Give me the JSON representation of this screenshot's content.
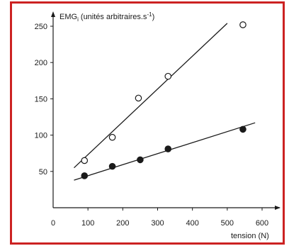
{
  "chart_data": {
    "type": "scatter",
    "title": "",
    "ylabel": "EMG",
    "ylabel_sub": "i",
    "ylabel_rest": " (unités arbitraires.s",
    "ylabel_sup": "-1",
    "ylabel_end": ")",
    "xlabel": "tension (N)",
    "xlim": [
      0,
      650
    ],
    "ylim": [
      0,
      265
    ],
    "x_ticks": [
      0,
      100,
      200,
      300,
      400,
      500,
      600
    ],
    "y_ticks": [
      50,
      100,
      150,
      200,
      250
    ],
    "grid": false,
    "series": [
      {
        "marker": "open-circle",
        "x": [
          90,
          170,
          245,
          330,
          545
        ],
        "y": [
          65,
          97,
          151,
          181,
          252
        ],
        "fit_line": {
          "x": [
            60,
            500
          ],
          "y": [
            55,
            254
          ]
        }
      },
      {
        "marker": "filled-circle",
        "x": [
          90,
          170,
          250,
          330,
          545
        ],
        "y": [
          44,
          57,
          66,
          81,
          108
        ],
        "fit_line": {
          "x": [
            60,
            580
          ],
          "y": [
            38,
            117
          ]
        }
      }
    ],
    "colors": {
      "frame": "#cc2222",
      "ink": "#1a1a1a"
    }
  }
}
